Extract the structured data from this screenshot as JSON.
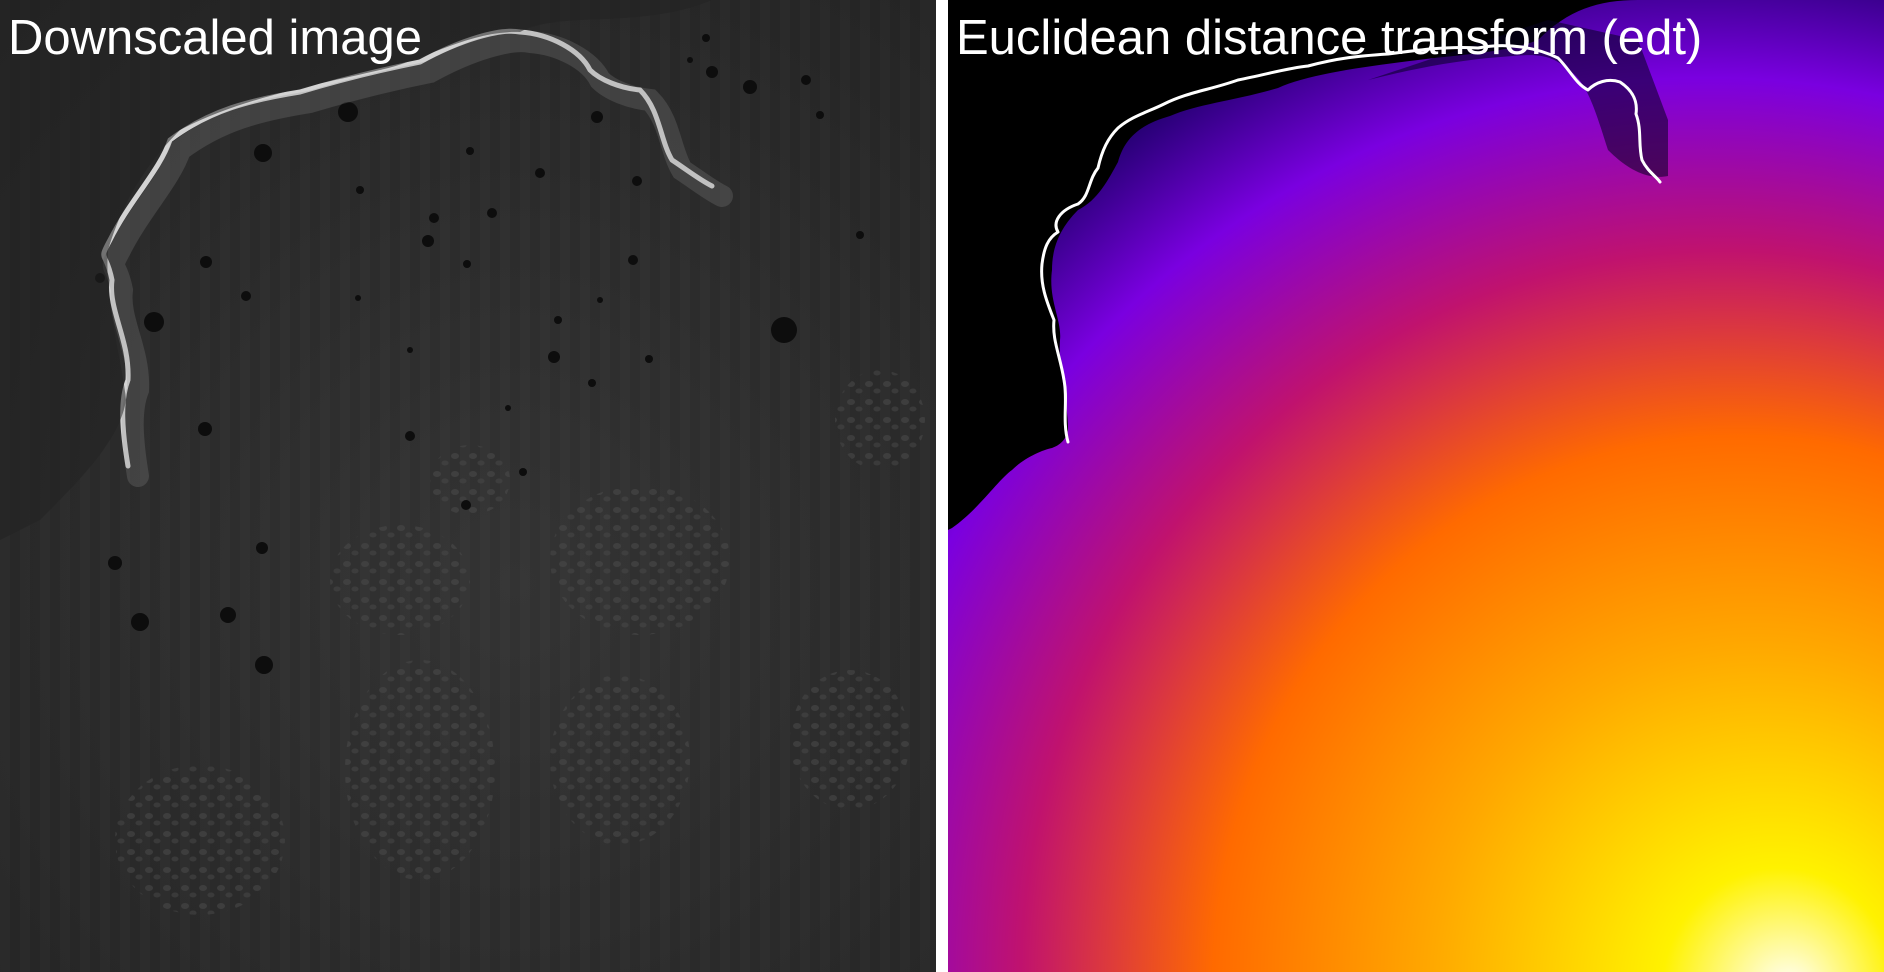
{
  "panels": [
    {
      "title": "Downscaled image",
      "kind": "grayscale-micrograph"
    },
    {
      "title": "Euclidean distance transform (edt)",
      "kind": "distance-map",
      "colormap": [
        "#000000",
        "#0a0050",
        "#7a00e0",
        "#c0126e",
        "#ff6a00",
        "#ffa800",
        "#fff200",
        "#ffffff"
      ]
    }
  ],
  "colors": {
    "background": "#ffffff",
    "title": "#ffffff",
    "contour": "#ffffff",
    "tissue": "#2b2b2b"
  }
}
